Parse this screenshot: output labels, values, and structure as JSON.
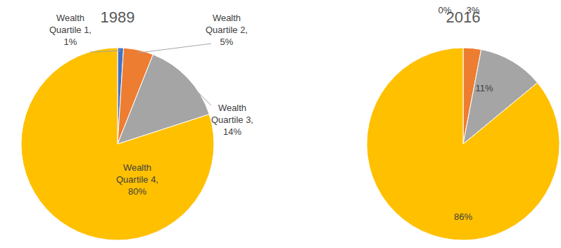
{
  "chart_data": [
    {
      "type": "pie",
      "title": "1989",
      "values": [
        1,
        5,
        14,
        80
      ],
      "value_labels": [
        "Wealth Quartile 1, 1%",
        "Wealth Quartile 2, 5%",
        "Wealth Quartile 3, 14%",
        "Wealth Quartile 4, 80%"
      ],
      "colors": [
        "#4472c4",
        "#ed7d31",
        "#a5a5a5",
        "#ffc000"
      ],
      "data_labels": true
    },
    {
      "type": "pie",
      "title": "2016",
      "values": [
        0,
        3,
        11,
        86
      ],
      "value_labels": [
        "0%",
        "3%",
        "11%",
        "86%"
      ],
      "colors": [
        "#4472c4",
        "#ed7d31",
        "#a5a5a5",
        "#ffc000"
      ],
      "data_labels": true
    }
  ]
}
